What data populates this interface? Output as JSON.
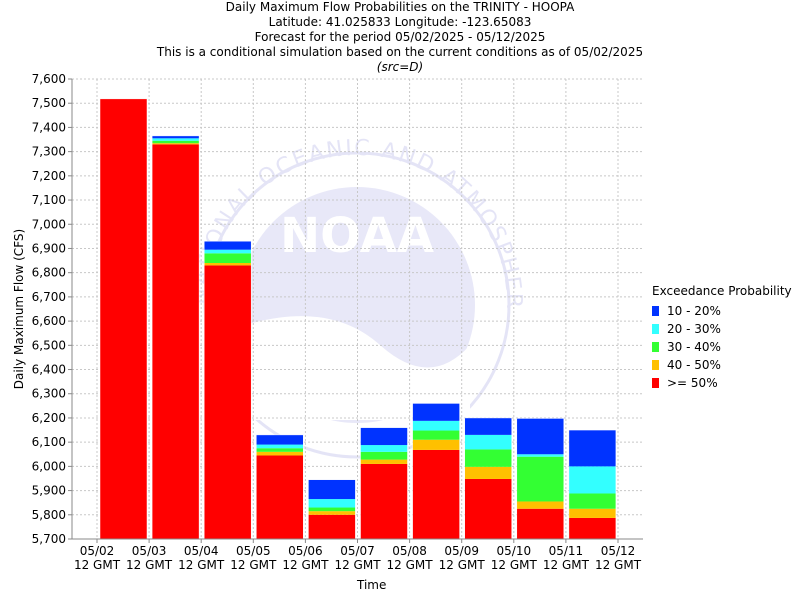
{
  "title": {
    "line1": "Daily Maximum Flow Probabilities on the TRINITY - HOOPA",
    "line2": "Latitude: 41.025833 Longitude: -123.65083",
    "line3": "Forecast for the period 05/02/2025 - 05/12/2025",
    "line4": "This is a conditional simulation based on the current conditions as of 05/02/2025",
    "line5": "(src=D)"
  },
  "watermark": {
    "logo": "NOAA",
    "ring_text": "NATIONAL OCEANIC AND ATMOSPHERIC ADMINISTRATION"
  },
  "chart_data": {
    "type": "bar",
    "stacked": true,
    "xlabel": "Time",
    "ylabel": "Daily Maximum Flow (CFS)",
    "ylim": [
      5700,
      7600
    ],
    "ytick_step": 100,
    "grid": true,
    "legend_placement": "right",
    "x_ticks": [
      [
        "05/02",
        "12 GMT"
      ],
      [
        "05/03",
        "12 GMT"
      ],
      [
        "05/04",
        "12 GMT"
      ],
      [
        "05/05",
        "12 GMT"
      ],
      [
        "05/06",
        "12 GMT"
      ],
      [
        "05/07",
        "12 GMT"
      ],
      [
        "05/08",
        "12 GMT"
      ],
      [
        "05/09",
        "12 GMT"
      ],
      [
        "05/10",
        "12 GMT"
      ],
      [
        "05/11",
        "12 GMT"
      ],
      [
        "05/12",
        "12 GMT"
      ]
    ],
    "legend_title": "Exceedance Probability",
    "series": [
      {
        "name": ">= 50%",
        "color": "#ff0000",
        "top": [
          7518,
          7330,
          6830,
          6045,
          5800,
          6010,
          6068,
          5948,
          5825,
          5787
        ]
      },
      {
        "name": "40 - 50%",
        "color": "#ffc000",
        "top": [
          7518,
          7335,
          6840,
          6060,
          5815,
          6028,
          6110,
          5998,
          5855,
          5825
        ]
      },
      {
        "name": "30 - 40%",
        "color": "#33ff33",
        "top": [
          7518,
          7345,
          6880,
          6075,
          5830,
          6060,
          6148,
          6070,
          6040,
          5888
        ]
      },
      {
        "name": "20 - 30%",
        "color": "#33ffff",
        "top": [
          7518,
          7355,
          6895,
          6090,
          5865,
          6088,
          6188,
          6130,
          6050,
          6000
        ]
      },
      {
        "name": "10 - 20%",
        "color": "#0033ff",
        "top": [
          7518,
          7365,
          6930,
          6130,
          5945,
          6160,
          6260,
          6200,
          6198,
          6150
        ]
      }
    ]
  }
}
